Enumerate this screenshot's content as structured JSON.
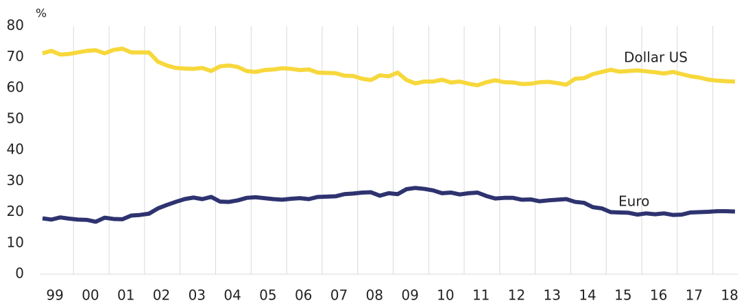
{
  "chart_data": {
    "type": "line",
    "y_unit": "%",
    "categories": [
      null,
      "99",
      null,
      null,
      null,
      "00",
      null,
      null,
      null,
      "01",
      null,
      null,
      null,
      "02",
      null,
      null,
      null,
      "03",
      null,
      null,
      null,
      "04",
      null,
      null,
      null,
      "05",
      null,
      null,
      null,
      "06",
      null,
      null,
      null,
      "07",
      null,
      null,
      null,
      "08",
      null,
      null,
      null,
      "09",
      null,
      null,
      null,
      "10",
      null,
      null,
      null,
      "11",
      null,
      null,
      null,
      "12",
      null,
      null,
      null,
      "13",
      null,
      null,
      null,
      "14",
      null,
      null,
      null,
      "15",
      null,
      null,
      null,
      "16",
      null,
      null,
      null,
      "17",
      null,
      null,
      null,
      "18",
      null
    ],
    "series": [
      {
        "name": "Dollar US",
        "color": "#f7d83c",
        "values": [
          71.2,
          72,
          70.8,
          71,
          71.5,
          72,
          72.2,
          71.2,
          72.3,
          72.7,
          71.5,
          71.5,
          71.5,
          68.5,
          67.3,
          66.5,
          66.3,
          66.2,
          66.5,
          65.5,
          67,
          67.3,
          66.8,
          65.5,
          65.2,
          65.8,
          66,
          66.4,
          66.2,
          65.8,
          66,
          65,
          64.9,
          64.8,
          64,
          63.9,
          63,
          62.6,
          64.1,
          63.8,
          65,
          62.6,
          61.5,
          62.1,
          62.1,
          62.7,
          61.8,
          62.1,
          61.4,
          60.9,
          61.9,
          62.5,
          61.9,
          61.8,
          61.3,
          61.4,
          61.9,
          62,
          61.6,
          61.1,
          63,
          63.2,
          64.5,
          65.2,
          65.9,
          65.3,
          65.5,
          65.7,
          65.4,
          65.1,
          64.7,
          65.2,
          64.5,
          63.8,
          63.4,
          62.7,
          62.4,
          62.2,
          62.1
        ]
      },
      {
        "name": "Euro",
        "color": "#2e3370",
        "values": [
          18,
          17.6,
          18.3,
          17.9,
          17.6,
          17.5,
          16.9,
          18.2,
          17.8,
          17.7,
          18.9,
          19.1,
          19.5,
          21.2,
          22.3,
          23.3,
          24.2,
          24.7,
          24.2,
          24.9,
          23.4,
          23.3,
          23.8,
          24.6,
          24.8,
          24.5,
          24.2,
          24,
          24.3,
          24.5,
          24.2,
          24.9,
          25,
          25.1,
          25.8,
          26,
          26.3,
          26.4,
          25.3,
          26.1,
          25.8,
          27.4,
          27.8,
          27.5,
          27,
          26.1,
          26.3,
          25.7,
          26.1,
          26.3,
          25.2,
          24.4,
          24.6,
          24.6,
          24,
          24.1,
          23.5,
          23.8,
          24,
          24.2,
          23.3,
          23,
          21.6,
          21.2,
          20,
          19.9,
          19.8,
          19.2,
          19.6,
          19.3,
          19.6,
          19.1,
          19.2,
          19.9,
          20,
          20.1,
          20.3,
          20.3,
          20.2
        ]
      }
    ],
    "ylim": [
      0,
      80
    ],
    "yticks": [
      0,
      10,
      20,
      30,
      40,
      50,
      60,
      70,
      80
    ],
    "grid": true
  }
}
